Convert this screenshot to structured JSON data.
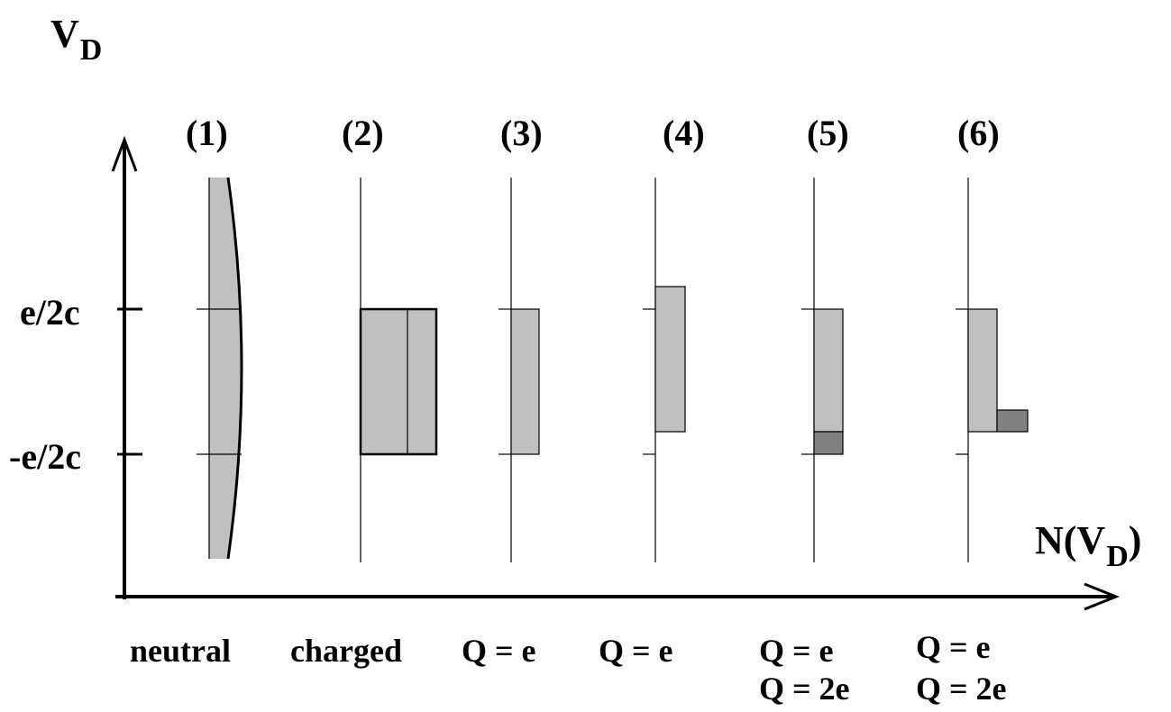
{
  "axes": {
    "y_label_main": "V",
    "y_label_sub": "D",
    "x_label_main": "N(V",
    "x_label_sub": "D",
    "x_label_close": ")"
  },
  "ticks": {
    "upper": "e/2c",
    "lower": "-e/2c"
  },
  "panels": [
    {
      "number": "(1)",
      "caption": [
        "neutral"
      ]
    },
    {
      "number": "(2)",
      "caption": [
        "charged"
      ]
    },
    {
      "number": "(3)",
      "caption": [
        "Q = e"
      ]
    },
    {
      "number": "(4)",
      "caption": [
        "Q = e"
      ]
    },
    {
      "number": "(5)",
      "caption": [
        "Q = e",
        "Q = 2e"
      ]
    },
    {
      "number": "(6)",
      "caption": [
        "Q = e",
        "Q = 2e"
      ]
    }
  ],
  "colors": {
    "light_fill": "#c0c0c0",
    "dark_fill": "#808080",
    "stroke": "#000000"
  }
}
